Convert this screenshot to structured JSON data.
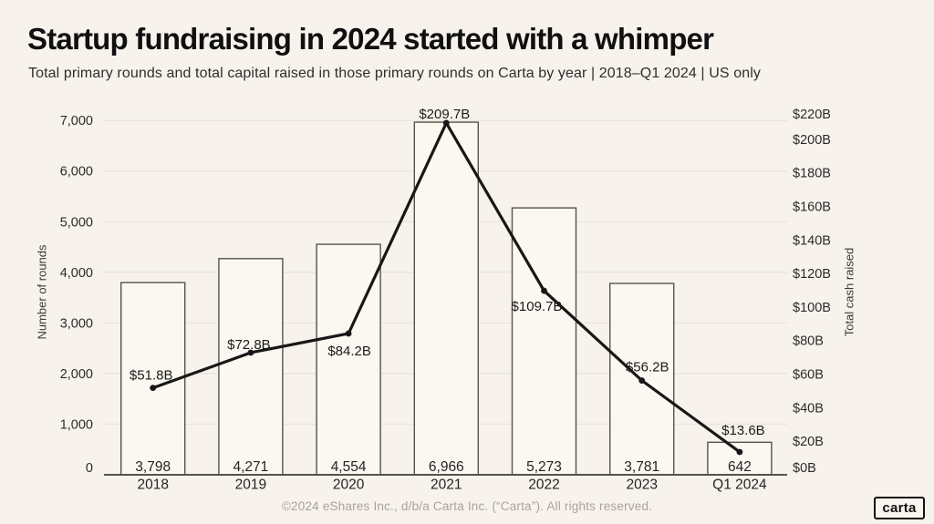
{
  "page": {
    "title": "Startup fundraising in 2024 started with a whimper",
    "subtitle": "Total primary rounds and total capital raised in those primary rounds on Carta by year | 2018–Q1 2024 | US only",
    "footer": "©2024 eShares Inc., d/b/a Carta Inc. (“Carta”). All rights reserved.",
    "logo_text": "carta"
  },
  "colors": {
    "background": "#f7f3ec",
    "bar_fill": "#fbf8f1",
    "bar_border": "#56534b",
    "gridline": "#e9e5db",
    "axis_line": "#56534b",
    "line": "#171717",
    "label_text": "#242424",
    "muted_text": "#a8a29a"
  },
  "chart_data": {
    "type": "bar+line",
    "categories": [
      "2018",
      "2019",
      "2020",
      "2021",
      "2022",
      "2023",
      "Q1 2024"
    ],
    "series": [
      {
        "name": "Total primary rounds",
        "type": "bar",
        "axis": "left",
        "values": [
          3798,
          4271,
          4554,
          6966,
          5273,
          3781,
          642
        ],
        "value_labels": [
          "3,798",
          "4,271",
          "4,554",
          "6,966",
          "5,273",
          "3,781",
          "642"
        ]
      },
      {
        "name": "Total capital raised",
        "type": "line",
        "axis": "right",
        "values": [
          51.8,
          72.8,
          84.2,
          209.7,
          109.7,
          56.2,
          13.6
        ],
        "value_labels": [
          "$51.8B",
          "$72.8B",
          "$84.2B",
          "$209.7B",
          "$109.7B",
          "$56.2B",
          "$13.6B"
        ],
        "label_offsets": [
          [
            -2,
            -9
          ],
          [
            -2,
            -4
          ],
          [
            1,
            24
          ],
          [
            -2,
            -5
          ],
          [
            -8,
            22
          ],
          [
            6,
            -10
          ],
          [
            4,
            -19
          ]
        ]
      }
    ],
    "left_axis": {
      "title": "Number of rounds",
      "range": [
        0,
        7000
      ],
      "ticks": [
        0,
        1000,
        2000,
        3000,
        4000,
        5000,
        6000,
        7000
      ],
      "tick_labels": [
        "0",
        "1,000",
        "2,000",
        "3,000",
        "4,000",
        "5,000",
        "6,000",
        "7,000"
      ]
    },
    "right_axis": {
      "title": "Total cash raised",
      "range": [
        0,
        220
      ],
      "ticks": [
        0,
        20,
        40,
        60,
        80,
        100,
        120,
        140,
        160,
        180,
        200,
        220
      ],
      "tick_labels": [
        "$0B",
        "$20B",
        "$40B",
        "$60B",
        "$80B",
        "$100B",
        "$120B",
        "$140B",
        "$160B",
        "$180B",
        "$200B",
        "$220B"
      ]
    },
    "grid": "horizontal gridlines at left-axis thousands",
    "legend": "none"
  }
}
